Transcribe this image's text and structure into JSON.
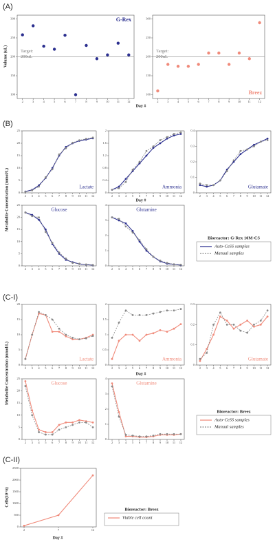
{
  "figure": {
    "panels": [
      "(A)",
      "(B)",
      "(C-I)",
      "(C-II)"
    ],
    "x_label": "Day #",
    "y_labels": [
      "Volume (uL)",
      "Metabolite Concentration (mmol/L)",
      "Metabolite Concentration (mmol/L)",
      "Cells(10^6)"
    ],
    "legend_titles": [
      "Bioreactor: G-Rex 10M-CS",
      "Bioreactor: Breez",
      "Bioreactor: Breez"
    ]
  },
  "chart_data": [
    {
      "type": "scatter",
      "label": "G-Rex",
      "x": [
        2,
        3,
        4,
        5,
        6,
        7,
        8,
        9,
        10,
        11,
        12
      ],
      "xticks": [
        2,
        3,
        4,
        5,
        6,
        7,
        8,
        9,
        10,
        11,
        12
      ],
      "xlim": [
        1.5,
        12.5
      ],
      "ylim": [
        90,
        310
      ],
      "yticks": [
        100,
        150,
        200,
        250,
        300
      ],
      "target": 200,
      "target_label": [
        "Target:",
        "200uL"
      ],
      "series": [
        {
          "name": "G-Rex",
          "color": "#2b2f8f",
          "values": [
            258,
            282,
            228,
            220,
            257,
            100,
            230,
            195,
            205,
            236,
            205
          ]
        }
      ]
    },
    {
      "type": "scatter",
      "label": "Breez",
      "x": [
        2,
        3,
        4,
        5,
        6,
        7,
        8,
        9,
        10,
        11,
        12
      ],
      "xticks": [
        2,
        3,
        4,
        5,
        6,
        7,
        8,
        9,
        10,
        11,
        12
      ],
      "xlim": [
        1.5,
        12.5
      ],
      "ylim": [
        90,
        310
      ],
      "yticks": [
        100,
        150,
        200,
        250,
        300
      ],
      "target": 200,
      "target_label": [
        "Target:",
        "200uL"
      ],
      "series": [
        {
          "name": "Breez",
          "color": "#f08a7a",
          "values": [
            110,
            180,
            175,
            175,
            180,
            210,
            210,
            180,
            210,
            195,
            290
          ]
        }
      ]
    },
    {
      "type": "line",
      "label": "Lactate",
      "x": [
        2,
        3,
        4,
        5,
        6,
        7,
        8,
        9,
        10,
        11,
        12
      ],
      "xticks": [
        2,
        3,
        4,
        5,
        6,
        7,
        8,
        9,
        10,
        11,
        12
      ],
      "xlim": [
        1.5,
        12.5
      ],
      "ylim": [
        0,
        25
      ],
      "yticks": [
        0,
        5,
        10,
        15,
        20,
        25
      ],
      "series": [
        {
          "name": "Auto-CeSS samples",
          "color": "#2b2f8f",
          "linestyle": "solid",
          "values": [
            0.5,
            1.2,
            3,
            6,
            10,
            15,
            18.5,
            20,
            21,
            21.5,
            22
          ]
        },
        {
          "name": "Manual samples",
          "color": "#888888",
          "linestyle": "dashed",
          "values": [
            0.4,
            1,
            2.5,
            6.3,
            9.5,
            15.5,
            18,
            20.2,
            21.2,
            21.8,
            22.3
          ]
        }
      ]
    },
    {
      "type": "line",
      "label": "Ammonia",
      "x": [
        2,
        3,
        4,
        5,
        6,
        7,
        8,
        9,
        10,
        11,
        12
      ],
      "xticks": [
        2,
        3,
        4,
        5,
        6,
        7,
        8,
        9,
        10,
        11,
        12
      ],
      "xlim": [
        1.5,
        12.5
      ],
      "ylim": [
        0,
        2
      ],
      "yticks": [
        0,
        0.4,
        0.8,
        1.2,
        1.6,
        2
      ],
      "series": [
        {
          "name": "Auto-CeSS samples",
          "color": "#2b2f8f",
          "linestyle": "solid",
          "values": [
            0.1,
            0.2,
            0.45,
            0.7,
            0.95,
            1.2,
            1.45,
            1.6,
            1.75,
            1.85,
            1.9
          ]
        },
        {
          "name": "Manual samples",
          "color": "#888888",
          "linestyle": "dashed",
          "values": [
            0.1,
            0.15,
            0.35,
            0.75,
            1.0,
            1.35,
            1.5,
            1.7,
            1.8,
            1.9,
            1.95
          ]
        }
      ]
    },
    {
      "type": "line",
      "label": "Glutamate",
      "x": [
        2,
        3,
        4,
        5,
        6,
        7,
        8,
        9,
        10,
        11,
        12
      ],
      "xticks": [
        2,
        3,
        4,
        5,
        6,
        7,
        8,
        9,
        10,
        11,
        12
      ],
      "xlim": [
        1.5,
        12.5
      ],
      "ylim": [
        0,
        0.4
      ],
      "yticks": [
        0,
        0.1,
        0.2,
        0.3,
        0.4
      ],
      "series": [
        {
          "name": "Auto-CeSS samples",
          "color": "#2b2f8f",
          "linestyle": "solid",
          "values": [
            0.05,
            0.04,
            0.05,
            0.08,
            0.15,
            0.2,
            0.25,
            0.28,
            0.31,
            0.33,
            0.35
          ]
        },
        {
          "name": "Manual samples",
          "color": "#888888",
          "linestyle": "dashed",
          "values": [
            0.06,
            0.05,
            0.05,
            0.08,
            0.14,
            0.21,
            0.27,
            0.28,
            0.3,
            0.33,
            0.34
          ]
        }
      ]
    },
    {
      "type": "line",
      "label": "Glucose",
      "x": [
        2,
        3,
        4,
        5,
        6,
        7,
        8,
        9,
        10,
        11,
        12
      ],
      "xticks": [
        2,
        3,
        4,
        5,
        6,
        7,
        8,
        9,
        10,
        11,
        12
      ],
      "xlim": [
        1.5,
        12.5
      ],
      "ylim": [
        0,
        25
      ],
      "yticks": [
        0,
        5,
        10,
        15,
        20,
        25
      ],
      "series": [
        {
          "name": "Auto-CeSS samples",
          "color": "#2b2f8f",
          "linestyle": "solid",
          "values": [
            22,
            21,
            19,
            15,
            9,
            5,
            2.5,
            1.5,
            0.8,
            0.5,
            0.3
          ]
        },
        {
          "name": "Manual samples",
          "color": "#888888",
          "linestyle": "dashed",
          "values": [
            22,
            20.5,
            20,
            14,
            9.5,
            5.5,
            3,
            1.2,
            0.9,
            0.6,
            0.4
          ]
        }
      ]
    },
    {
      "type": "line",
      "label": "Glutamine",
      "x": [
        2,
        3,
        4,
        5,
        6,
        7,
        8,
        9,
        10,
        11,
        12
      ],
      "xticks": [
        2,
        3,
        4,
        5,
        6,
        7,
        8,
        9,
        10,
        11,
        12
      ],
      "xlim": [
        1.5,
        12.5
      ],
      "ylim": [
        0,
        4
      ],
      "yticks": [
        0,
        1,
        2,
        3,
        4
      ],
      "series": [
        {
          "name": "Auto-CeSS samples",
          "color": "#2b2f8f",
          "linestyle": "solid",
          "values": [
            3.2,
            3.0,
            2.8,
            2.3,
            1.6,
            1.0,
            0.6,
            0.3,
            0.15,
            0.1,
            0.05
          ]
        },
        {
          "name": "Manual samples",
          "color": "#888888",
          "linestyle": "dashed",
          "values": [
            3.2,
            3.1,
            2.6,
            2.2,
            1.7,
            1.1,
            0.6,
            0.35,
            0.2,
            0.1,
            0.08
          ]
        }
      ]
    },
    {
      "type": "line",
      "label": "Lactate",
      "x": [
        2,
        3,
        4,
        5,
        6,
        7,
        8,
        9,
        10,
        11,
        12
      ],
      "xticks": [
        2,
        3,
        4,
        5,
        6,
        7,
        8,
        9,
        10,
        11,
        12
      ],
      "xlim": [
        1.5,
        12.5
      ],
      "ylim": [
        0,
        20
      ],
      "yticks": [
        0,
        5,
        10,
        15,
        20
      ],
      "series": [
        {
          "name": "Auto-CeSS samples",
          "color": "#f08a7a",
          "linestyle": "solid",
          "values": [
            2,
            10,
            17,
            16.5,
            11,
            11,
            9.5,
            8.5,
            8.5,
            9,
            10
          ]
        },
        {
          "name": "Manual samples",
          "color": "#888888",
          "linestyle": "dashed",
          "values": [
            2,
            10,
            17.5,
            16.5,
            15,
            12,
            10,
            9,
            8.5,
            8.8,
            9.6
          ]
        }
      ]
    },
    {
      "type": "line",
      "label": "Ammonia",
      "x": [
        2,
        3,
        4,
        5,
        6,
        7,
        8,
        9,
        10,
        11,
        12
      ],
      "xticks": [
        2,
        3,
        4,
        5,
        6,
        7,
        8,
        9,
        10,
        11,
        12
      ],
      "xlim": [
        1.5,
        12.5
      ],
      "ylim": [
        0,
        2
      ],
      "yticks": [
        0,
        0.5,
        1,
        1.5,
        2
      ],
      "series": [
        {
          "name": "Auto-CeSS samples",
          "color": "#f08a7a",
          "linestyle": "solid",
          "values": [
            0.2,
            0.8,
            1.0,
            1.0,
            0.8,
            1.0,
            1.05,
            1.15,
            1.1,
            1.2,
            1.35
          ]
        },
        {
          "name": "Manual samples",
          "color": "#888888",
          "linestyle": "dashed",
          "values": [
            0.9,
            1.4,
            1.8,
            1.65,
            1.65,
            1.65,
            1.7,
            1.75,
            1.8,
            1.8,
            1.85
          ]
        }
      ]
    },
    {
      "type": "line",
      "label": "Glutamate",
      "x": [
        2,
        3,
        4,
        5,
        6,
        7,
        8,
        9,
        10,
        11,
        12
      ],
      "xticks": [
        2,
        3,
        4,
        5,
        6,
        7,
        8,
        9,
        10,
        11,
        12
      ],
      "xlim": [
        1.5,
        12.5
      ],
      "ylim": [
        0,
        0.3
      ],
      "yticks": [
        0,
        0.1,
        0.2,
        0.3
      ],
      "series": [
        {
          "name": "Auto-CeSS samples",
          "color": "#f08a7a",
          "linestyle": "solid",
          "values": [
            0.02,
            0.08,
            0.15,
            0.24,
            0.22,
            0.18,
            0.2,
            0.22,
            0.19,
            0.2,
            0.24
          ]
        },
        {
          "name": "Manual samples",
          "color": "#888888",
          "linestyle": "dashed",
          "values": [
            0.03,
            0.06,
            0.2,
            0.26,
            0.2,
            0.2,
            0.17,
            0.16,
            0.2,
            0.22,
            0.27
          ]
        }
      ]
    },
    {
      "type": "line",
      "label": "Glucose",
      "x": [
        2,
        3,
        4,
        5,
        6,
        7,
        8,
        9,
        10,
        11,
        12
      ],
      "xticks": [
        2,
        3,
        4,
        5,
        6,
        7,
        8,
        9,
        10,
        11,
        12
      ],
      "xlim": [
        1.5,
        12.5
      ],
      "ylim": [
        0,
        25
      ],
      "yticks": [
        0,
        5,
        10,
        15,
        20,
        25
      ],
      "series": [
        {
          "name": "Auto-CeSS samples",
          "color": "#f08a7a",
          "linestyle": "solid",
          "values": [
            24,
            12,
            4,
            3,
            3,
            6,
            7,
            7,
            8,
            7.5,
            7
          ]
        },
        {
          "name": "Manual samples",
          "color": "#888888",
          "linestyle": "dashed",
          "values": [
            22,
            10,
            3,
            2,
            2,
            4,
            5,
            6,
            7,
            7,
            5
          ]
        }
      ]
    },
    {
      "type": "line",
      "label": "Glutamine",
      "x": [
        2,
        3,
        4,
        5,
        6,
        7,
        8,
        9,
        10,
        11,
        12
      ],
      "xticks": [
        2,
        3,
        4,
        5,
        6,
        7,
        8,
        9,
        10,
        11,
        12
      ],
      "xlim": [
        1.5,
        12.5
      ],
      "ylim": [
        0,
        4
      ],
      "yticks": [
        0,
        1,
        2,
        3,
        4
      ],
      "series": [
        {
          "name": "Auto-CeSS samples",
          "color": "#f08a7a",
          "linestyle": "solid",
          "values": [
            3.7,
            1.8,
            0.2,
            0.2,
            0.15,
            0.15,
            0.2,
            0.3,
            0.3,
            0.3,
            0.35
          ]
        },
        {
          "name": "Manual samples",
          "color": "#888888",
          "linestyle": "dashed",
          "values": [
            3.5,
            1.5,
            0.3,
            0.25,
            0.2,
            0.2,
            0.25,
            0.35,
            0.35,
            0.35,
            0.35
          ]
        }
      ]
    },
    {
      "type": "line",
      "x": [
        2,
        7,
        12
      ],
      "xticks": [
        2,
        7,
        12
      ],
      "xlim": [
        1.5,
        12.5
      ],
      "ylim": [
        0,
        2500
      ],
      "yticks": [
        0,
        500,
        1000,
        1500,
        2000,
        2500
      ],
      "series": [
        {
          "name": "Viable cell count",
          "color": "#f08a7a",
          "linestyle": "solid",
          "values": [
            50,
            500,
            2200
          ]
        }
      ]
    }
  ]
}
